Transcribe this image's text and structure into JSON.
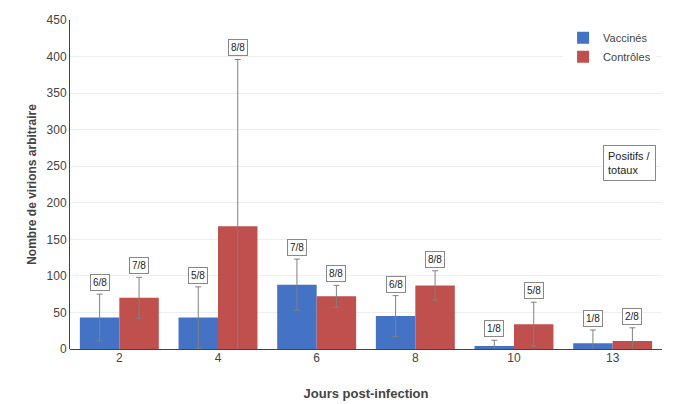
{
  "chart_data": {
    "type": "bar",
    "categories": [
      "2",
      "4",
      "6",
      "8",
      "10",
      "13"
    ],
    "series": [
      {
        "name": "Vaccinés",
        "color": "#4472C4",
        "values": [
          43,
          43,
          88,
          45,
          4,
          8
        ],
        "errors": [
          32,
          42,
          35,
          28,
          8,
          18
        ],
        "labels": [
          "6/8",
          "5/8",
          "7/8",
          "6/8",
          "1/8",
          "1/8"
        ]
      },
      {
        "name": "Contrôles",
        "color": "#C0504D",
        "values": [
          70,
          168,
          72,
          87,
          34,
          11
        ],
        "errors": [
          28,
          228,
          15,
          20,
          30,
          18
        ],
        "labels": [
          "7/8",
          "8/8",
          "8/8",
          "8/8",
          "5/8",
          "2/8"
        ]
      }
    ],
    "xlabel": "Jours post-infection",
    "ylabel": "Nombre de virions arbitraire",
    "ylim": [
      0,
      450
    ],
    "yticks": [
      0,
      50,
      100,
      150,
      200,
      250,
      300,
      350,
      400,
      450
    ],
    "grid": true,
    "legend": "upper right",
    "annotations": [
      "Positifs /\ntotaux"
    ]
  }
}
